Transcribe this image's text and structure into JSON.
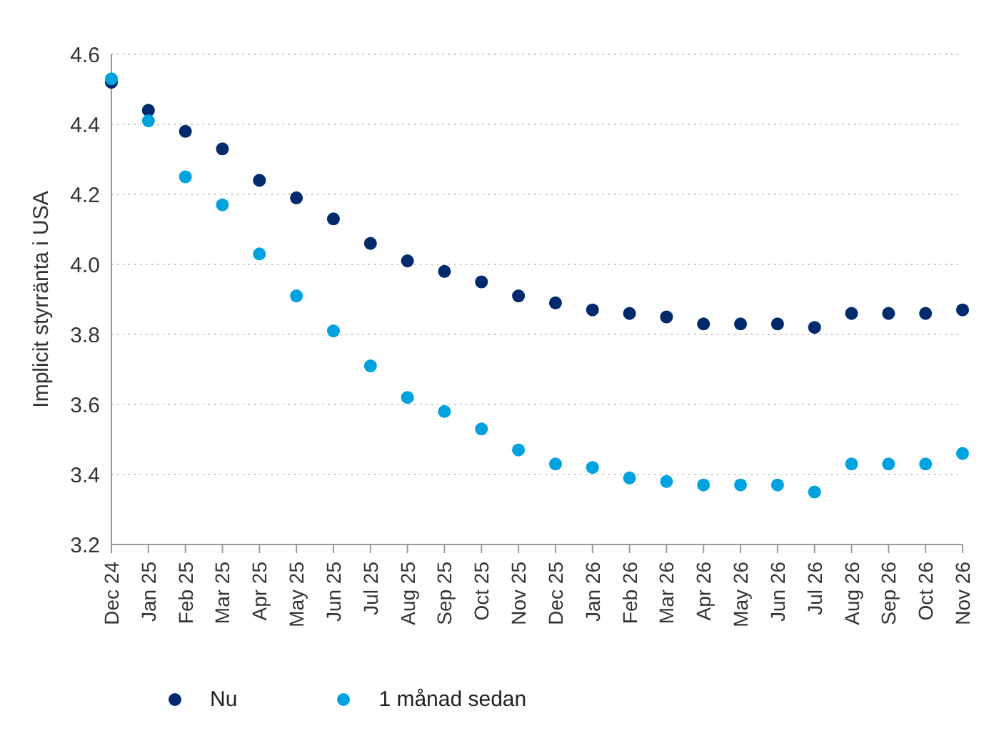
{
  "chart_data": {
    "type": "scatter",
    "ylabel": "Implicit styrränta i USA",
    "categories": [
      "Dec 24",
      "Jan 25",
      "Feb 25",
      "Mar 25",
      "Apr 25",
      "May 25",
      "Jun 25",
      "Jul 25",
      "Aug 25",
      "Sep 25",
      "Oct 25",
      "Nov 25",
      "Dec 25",
      "Jan 26",
      "Feb 26",
      "Mar 26",
      "Apr 26",
      "May 26",
      "Jun 26",
      "Jul 26",
      "Aug 26",
      "Sep 26",
      "Oct 26",
      "Nov 26"
    ],
    "series": [
      {
        "name": "Nu",
        "color": "#002a6c",
        "values": [
          4.52,
          4.44,
          4.38,
          4.33,
          4.24,
          4.19,
          4.13,
          4.06,
          4.01,
          3.98,
          3.95,
          3.91,
          3.89,
          3.87,
          3.86,
          3.85,
          3.83,
          3.83,
          3.83,
          3.82,
          3.86,
          3.86,
          3.86,
          3.87
        ]
      },
      {
        "name": "1 månad sedan",
        "color": "#00a3e0",
        "values": [
          4.53,
          4.41,
          4.25,
          4.17,
          4.03,
          3.91,
          3.81,
          3.71,
          3.62,
          3.58,
          3.53,
          3.47,
          3.43,
          3.42,
          3.39,
          3.38,
          3.37,
          3.37,
          3.37,
          3.35,
          3.43,
          3.43,
          3.43,
          3.46
        ]
      }
    ],
    "ylim": [
      3.2,
      4.6
    ],
    "yticks": [
      3.2,
      3.4,
      3.6,
      3.8,
      {
        "value": 4,
        "label": "4.0"
      },
      4.2,
      4.4,
      4.6
    ],
    "grid": "y",
    "legend": "bottom left",
    "marker": "circle"
  }
}
